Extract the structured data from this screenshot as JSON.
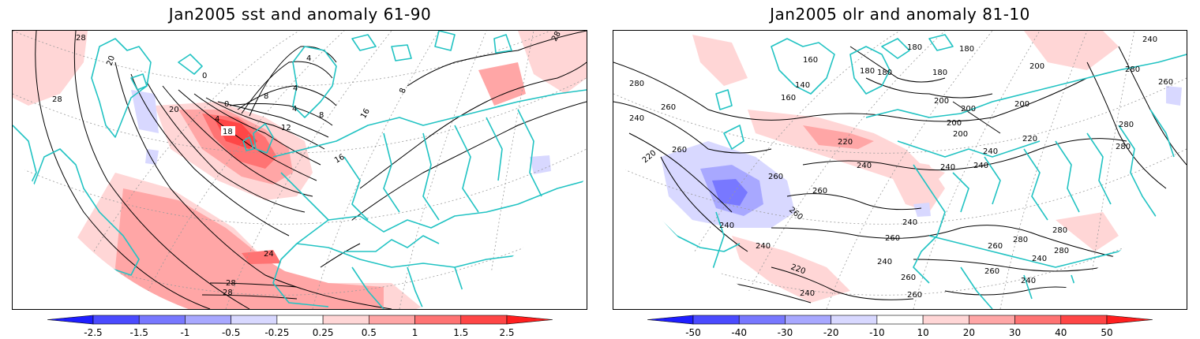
{
  "panels": [
    {
      "id": "sst",
      "title": "Jan2005 sst and anomaly 61-90",
      "contour_labels": [
        "28",
        "20",
        "0",
        "4",
        "4",
        "8",
        "4",
        "8",
        "20",
        "0",
        "4",
        "18",
        "12",
        "16",
        "8",
        "16",
        "28",
        "24",
        "28",
        "28",
        "28"
      ],
      "colorbar": {
        "ticks": [
          "-2.5",
          "-1.5",
          "-1",
          "-0.5",
          "-0.25",
          "0.25",
          "0.5",
          "1",
          "1.5",
          "2.5"
        ],
        "colors": [
          "#1e1eff",
          "#4b4bff",
          "#7878ff",
          "#a8a8ff",
          "#d8d8ff",
          "#ffffff",
          "#ffd6d6",
          "#ffa6a6",
          "#ff7373",
          "#ff4646",
          "#ff1e1e"
        ]
      }
    },
    {
      "id": "olr",
      "title": "Jan2005 olr and anomaly 81-10",
      "contour_labels": [
        "160",
        "180",
        "180",
        "180",
        "200",
        "240",
        "280",
        "140",
        "180",
        "180",
        "160",
        "200",
        "200",
        "280",
        "260",
        "260",
        "200",
        "200",
        "200",
        "240",
        "220",
        "220",
        "280",
        "260",
        "240",
        "240",
        "240",
        "240",
        "280",
        "220",
        "260",
        "260",
        "260",
        "240",
        "240",
        "260",
        "280",
        "280",
        "240",
        "220",
        "240",
        "260",
        "240",
        "280",
        "260",
        "260",
        "240",
        "240",
        "260"
      ],
      "colorbar": {
        "ticks": [
          "-50",
          "-40",
          "-30",
          "-20",
          "-10",
          "10",
          "20",
          "30",
          "40",
          "50"
        ],
        "colors": [
          "#1e1eff",
          "#4b4bff",
          "#7878ff",
          "#a8a8ff",
          "#d8d8ff",
          "#ffffff",
          "#ffd6d6",
          "#ffa6a6",
          "#ff7373",
          "#ff4646",
          "#ff1e1e"
        ]
      }
    }
  ],
  "map_colors": {
    "coast": "#22c3c3",
    "contour": "#000000",
    "grid": "#9a9a9a"
  }
}
